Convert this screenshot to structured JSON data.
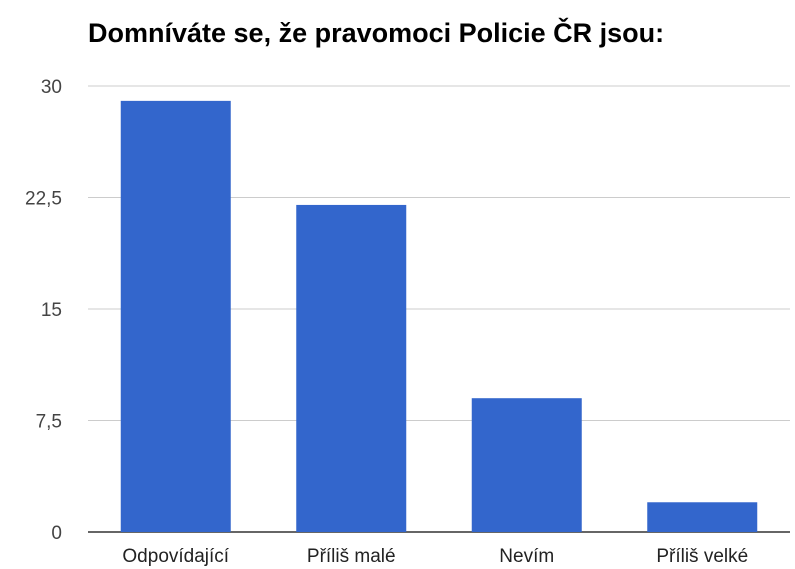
{
  "chart_data": {
    "type": "bar",
    "title": "Domníváte se, že pravomoci Policie ČR jsou:",
    "categories": [
      "Odpovídající",
      "Příliš malé",
      "Nevím",
      "Příliš velké"
    ],
    "values": [
      29,
      22,
      9,
      2
    ],
    "ylim": [
      0,
      30
    ],
    "yticks": [
      0,
      7.5,
      15,
      22.5,
      30
    ],
    "ytick_labels": [
      "0",
      "7,5",
      "15",
      "22,5",
      "30"
    ],
    "grid": true,
    "legend": "none",
    "colors": {
      "bar": "#3366cc",
      "grid": "#cccccc",
      "baseline": "#333333"
    }
  }
}
